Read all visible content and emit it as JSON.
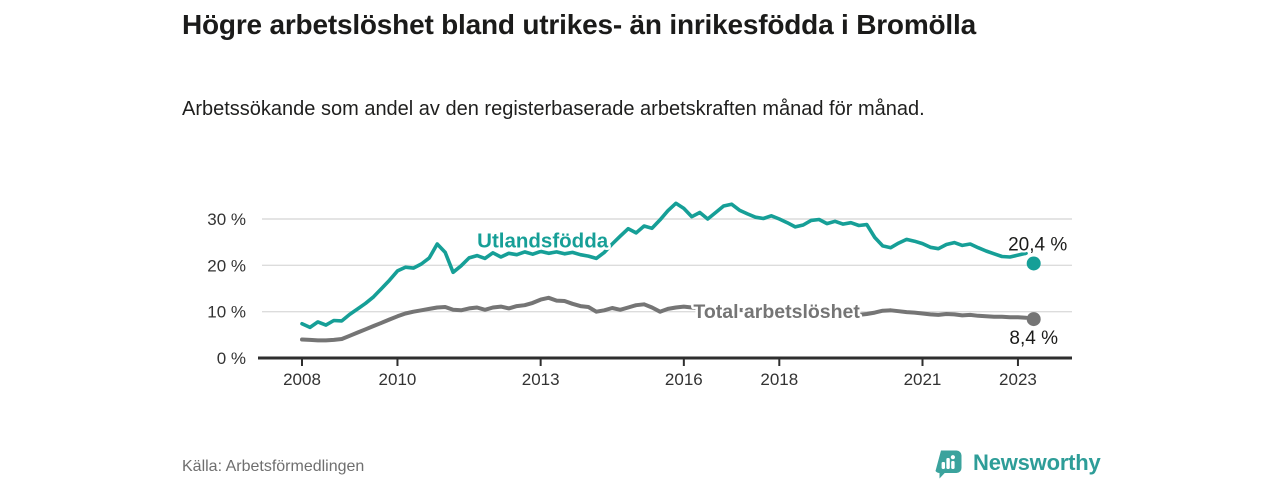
{
  "header": {
    "title": "Högre arbetslöshet bland utrikes- än inrikesfödda i Bromölla",
    "subtitle": "Arbetssökande som andel av den registerbaserade arbetskraften månad för månad."
  },
  "footer": {
    "source": "Källa: Arbetsförmedlingen",
    "brand": "Newsworthy"
  },
  "colors": {
    "accent_teal": "#169f97",
    "line_gray": "#757575",
    "grid": "#dcdcdc",
    "axis": "#2e2e2e",
    "tick_text": "#333333",
    "value_text": "#1b1b1a",
    "muted_text": "#6f6f6f",
    "brand_teal": "#2e9d98",
    "brand_icon_teal": "#3ba39d"
  },
  "chart_data": {
    "type": "line",
    "title": "Högre arbetslöshet bland utrikes- än inrikesfödda i Bromölla",
    "subtitle": "Arbetssökande som andel av den registerbaserade arbetskraften månad för månad.",
    "x_unit": "year (monthly share of registered labour force, sampled every 2 months)",
    "xlim": [
      2006.9,
      2024.1
    ],
    "ylim": [
      0,
      36
    ],
    "grid": "horizontal only",
    "x_ticks": [
      {
        "value": 2008,
        "label": "2008"
      },
      {
        "value": 2010,
        "label": "2010"
      },
      {
        "value": 2013,
        "label": "2013"
      },
      {
        "value": 2016,
        "label": "2016"
      },
      {
        "value": 2018,
        "label": "2018"
      },
      {
        "value": 2021,
        "label": "2021"
      },
      {
        "value": 2023,
        "label": "2023"
      }
    ],
    "y_ticks": [
      {
        "value": 0,
        "label": "0 %"
      },
      {
        "value": 10,
        "label": "10 %"
      },
      {
        "value": 20,
        "label": "20 %"
      },
      {
        "value": 30,
        "label": "30 %"
      }
    ],
    "series": [
      {
        "name": "Utlandsfödda",
        "color": "#169f97",
        "line_width": 3.6,
        "label_anchor": {
          "year": 2011.67,
          "value": 23.8
        },
        "start_year": 2008.0,
        "step_years": 0.166667,
        "values": [
          7.4,
          6.6,
          7.8,
          7.1,
          8.1,
          8.0,
          9.4,
          10.6,
          11.8,
          13.2,
          15.0,
          16.8,
          18.8,
          19.6,
          19.4,
          20.3,
          21.6,
          24.6,
          22.8,
          18.5,
          19.9,
          21.6,
          22.1,
          21.5,
          22.7,
          21.8,
          22.6,
          22.3,
          22.9,
          22.4,
          23.0,
          22.6,
          22.9,
          22.5,
          22.8,
          22.3,
          22.0,
          21.5,
          22.8,
          24.6,
          26.3,
          27.9,
          27.0,
          28.5,
          28.0,
          29.8,
          31.8,
          33.4,
          32.3,
          30.5,
          31.4,
          30.0,
          31.4,
          32.8,
          33.2,
          31.9,
          31.1,
          30.4,
          30.1,
          30.7,
          30.0,
          29.2,
          28.3,
          28.7,
          29.7,
          29.9,
          29.0,
          29.5,
          28.9,
          29.2,
          28.6,
          28.8,
          26.0,
          24.2,
          23.8,
          24.8,
          25.6,
          25.2,
          24.7,
          23.9,
          23.6,
          24.5,
          24.9,
          24.3,
          24.6,
          23.8,
          23.1,
          22.5,
          21.9,
          21.8,
          22.2,
          22.6
        ],
        "end_point": {
          "year": 2023.33,
          "value": 20.4,
          "label": "20,4 %",
          "label_position": "above",
          "dashed_connector": true
        }
      },
      {
        "name": "Total arbetslöshet",
        "color": "#757575",
        "line_width": 4,
        "label_anchor": {
          "year": 2016.2,
          "value": 8.6
        },
        "start_year": 2008.0,
        "step_years": 0.166667,
        "values": [
          4.0,
          3.9,
          3.8,
          3.8,
          3.9,
          4.1,
          4.8,
          5.5,
          6.2,
          6.9,
          7.6,
          8.3,
          9.0,
          9.6,
          10.0,
          10.3,
          10.6,
          10.9,
          11.0,
          10.4,
          10.3,
          10.7,
          10.9,
          10.4,
          10.9,
          11.1,
          10.7,
          11.2,
          11.4,
          11.9,
          12.6,
          13.0,
          12.4,
          12.3,
          11.7,
          11.2,
          11.0,
          10.0,
          10.3,
          10.8,
          10.4,
          10.9,
          11.4,
          11.6,
          10.9,
          10.0,
          10.6,
          10.9,
          11.1,
          10.9,
          10.7,
          10.5,
          10.6,
          10.8,
          10.6,
          10.4,
          10.2,
          10.0,
          10.1,
          10.3,
          10.1,
          9.9,
          9.7,
          9.5,
          9.6,
          9.8,
          9.6,
          9.4,
          9.3,
          9.2,
          9.3,
          9.5,
          9.8,
          10.2,
          10.3,
          10.1,
          9.9,
          9.8,
          9.6,
          9.4,
          9.3,
          9.5,
          9.4,
          9.2,
          9.3,
          9.1,
          9.0,
          8.9,
          8.9,
          8.8,
          8.8,
          8.7
        ],
        "end_point": {
          "year": 2023.33,
          "value": 8.4,
          "label": "8,4 %",
          "label_position": "below",
          "dashed_connector": false
        }
      }
    ]
  }
}
